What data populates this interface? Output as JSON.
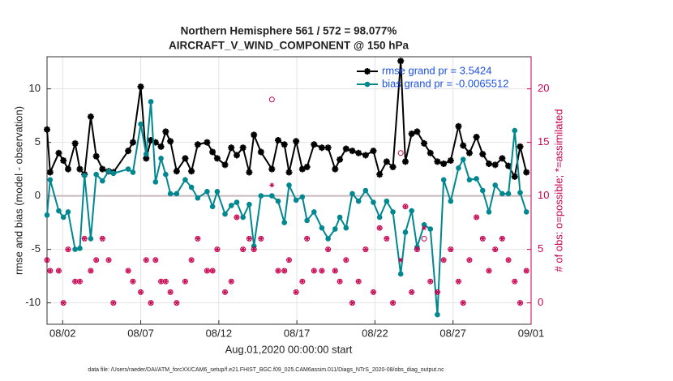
{
  "chart_data": {
    "type": "line",
    "title": "Northern Hemisphere 561 / 572 = 98.077%",
    "subtitle": "AIRCRAFT_V_WIND_COMPONENT @ 150 hPa",
    "xlabel": "Aug.01,2020 00:00:00 start",
    "ylabel": "rmse and bias (model - observation)",
    "y2label": "# of obs: o=possible; *=assimilated",
    "footnote": "data file: /Users/raeder/DAI/ATM_forcXX/CAM6_setup/f.e21.FHIST_BGC.f09_025.CAM6assim.011/Diags_NTrS_2020-08/obs_diag_output.nc",
    "grid": true,
    "legend": "upper right",
    "xlim": [
      0,
      31
    ],
    "ylim": [
      -12,
      13
    ],
    "y2lim": [
      -2,
      23
    ],
    "xticks": [
      {
        "value": 1,
        "label": "08/02"
      },
      {
        "value": 6,
        "label": "08/07"
      },
      {
        "value": 11,
        "label": "08/12"
      },
      {
        "value": 16,
        "label": "08/17"
      },
      {
        "value": 21,
        "label": "08/22"
      },
      {
        "value": 26,
        "label": "08/27"
      },
      {
        "value": 31,
        "label": "09/01"
      }
    ],
    "yticks": [
      -10,
      -5,
      0,
      5,
      10
    ],
    "y2ticks": [
      0,
      5,
      10,
      15,
      20
    ],
    "x": [
      0.0,
      0.2,
      0.75,
      1.05,
      1.35,
      1.8,
      2.1,
      2.4,
      2.8,
      3.15,
      3.55,
      3.95,
      4.25,
      5.2,
      5.5,
      6.0,
      6.35,
      6.65,
      6.95,
      7.3,
      7.6,
      7.9,
      8.3,
      8.85,
      9.25,
      9.65,
      10.25,
      10.6,
      10.9,
      11.4,
      11.8,
      12.15,
      12.55,
      12.95,
      13.25,
      13.7,
      14.4,
      14.8,
      15.2,
      15.5,
      15.95,
      16.35,
      16.65,
      17.1,
      17.6,
      18.0,
      18.45,
      18.75,
      19.15,
      19.55,
      19.95,
      20.4,
      20.9,
      21.3,
      21.75,
      22.15,
      22.65,
      22.95,
      23.35,
      23.7,
      24.15,
      24.55,
      25.0,
      25.4,
      25.85,
      26.35,
      26.65,
      27.05,
      27.5,
      27.9,
      28.3,
      28.7,
      29.15,
      29.55,
      29.95,
      30.3,
      30.7
    ],
    "series": [
      {
        "name": "rmse grand pr = 3.5424",
        "color": "#000000",
        "marker": "star",
        "line": true,
        "values": [
          6.2,
          2.2,
          4.0,
          3.3,
          2.5,
          4.9,
          2.5,
          2.0,
          7.4,
          3.7,
          2.5,
          2.3,
          2.2,
          4.2,
          5.0,
          10.2,
          3.5,
          5.2,
          5.0,
          4.6,
          6.0,
          5.1,
          2.3,
          3.5,
          2.3,
          4.8,
          5.0,
          4.1,
          3.5,
          2.9,
          4.5,
          3.8,
          4.5,
          2.2,
          5.7,
          4.1,
          2.5,
          5.2,
          4.8,
          2.2,
          5.1,
          2.5,
          2.7,
          4.8,
          4.5,
          4.5,
          2.5,
          3.4,
          4.4,
          4.2,
          4.0,
          3.8,
          4.2,
          2.0,
          3.2,
          2.7,
          12.6,
          3.2,
          5.8,
          6.0,
          4.9,
          4.0,
          3.2,
          3.0,
          3.3,
          6.5,
          4.7,
          4.0,
          5.5,
          3.9,
          3.0,
          2.9,
          3.5,
          2.8,
          1.8,
          4.6,
          2.2
        ]
      },
      {
        "name": "bias grand pr = -0.0065512",
        "color": "#00878f",
        "marker": "dot",
        "line": true,
        "values": [
          -1.8,
          1.5,
          -1.4,
          -2,
          -1.5,
          -5,
          -4.9,
          1.9,
          -4,
          2,
          1.4,
          2.3,
          2.1,
          2.5,
          2.2,
          6.7,
          3.9,
          8.8,
          1.3,
          3.5,
          2.0,
          0.2,
          0.2,
          1.5,
          0.8,
          -0.2,
          0.4,
          -1.0,
          0.4,
          -1.7,
          -0.9,
          -0.6,
          -2.0,
          -0.8,
          -4.7,
          0,
          0,
          -0.5,
          -2.5,
          1.0,
          -0.4,
          -0.1,
          -2.3,
          -1.5,
          -3.0,
          -4.0,
          -3.1,
          -2.0,
          -3.0,
          0.2,
          -0.5,
          0.5,
          -0.6,
          -2.0,
          -0.5,
          -1.5,
          -7.3,
          -3.4,
          -1.4,
          -4.8,
          -2.7,
          -3.1,
          -11.1,
          1.5,
          -0.5,
          2.6,
          3.4,
          1.5,
          1.6,
          0.5,
          -1.5,
          1.0,
          0.2,
          0.2,
          6.1,
          0.3,
          -1.5
        ]
      },
      {
        "color": "#c8004f",
        "marker": "circle",
        "line": false,
        "axis": "y2",
        "values": [
          4,
          3,
          3,
          0,
          5,
          2,
          2,
          6,
          3,
          4,
          6,
          4,
          0,
          3,
          2,
          1,
          4,
          0,
          4,
          2,
          2,
          1,
          0,
          2,
          4,
          6,
          3,
          3,
          5,
          1,
          2,
          8,
          5,
          6,
          5,
          6,
          19,
          3,
          3,
          4,
          1,
          2,
          6,
          3,
          3,
          5,
          3,
          2,
          4,
          0,
          2,
          5,
          1,
          7,
          6,
          0,
          14,
          9,
          1,
          5,
          6,
          2,
          1,
          4,
          5,
          2,
          0,
          4,
          8,
          6,
          3,
          5,
          6,
          4,
          2,
          0,
          3
        ]
      },
      {
        "color": "#c8004f",
        "marker": "asterisk",
        "line": false,
        "axis": "y2",
        "values": [
          4,
          3,
          3,
          0,
          5,
          2,
          2,
          6,
          3,
          4,
          6,
          4,
          0,
          3,
          2,
          1,
          4,
          0,
          4,
          2,
          2,
          1,
          0,
          2,
          4,
          6,
          3,
          3,
          5,
          1,
          2,
          8,
          5,
          6,
          5,
          6,
          11,
          3,
          3,
          4,
          1,
          2,
          6,
          3,
          3,
          5,
          3,
          2,
          4,
          0,
          2,
          5,
          1,
          7,
          6,
          0,
          4,
          9,
          1,
          5,
          7,
          2,
          1,
          4,
          5,
          2,
          0,
          4,
          8,
          6,
          3,
          5,
          6,
          4,
          2,
          0,
          3
        ]
      }
    ]
  }
}
